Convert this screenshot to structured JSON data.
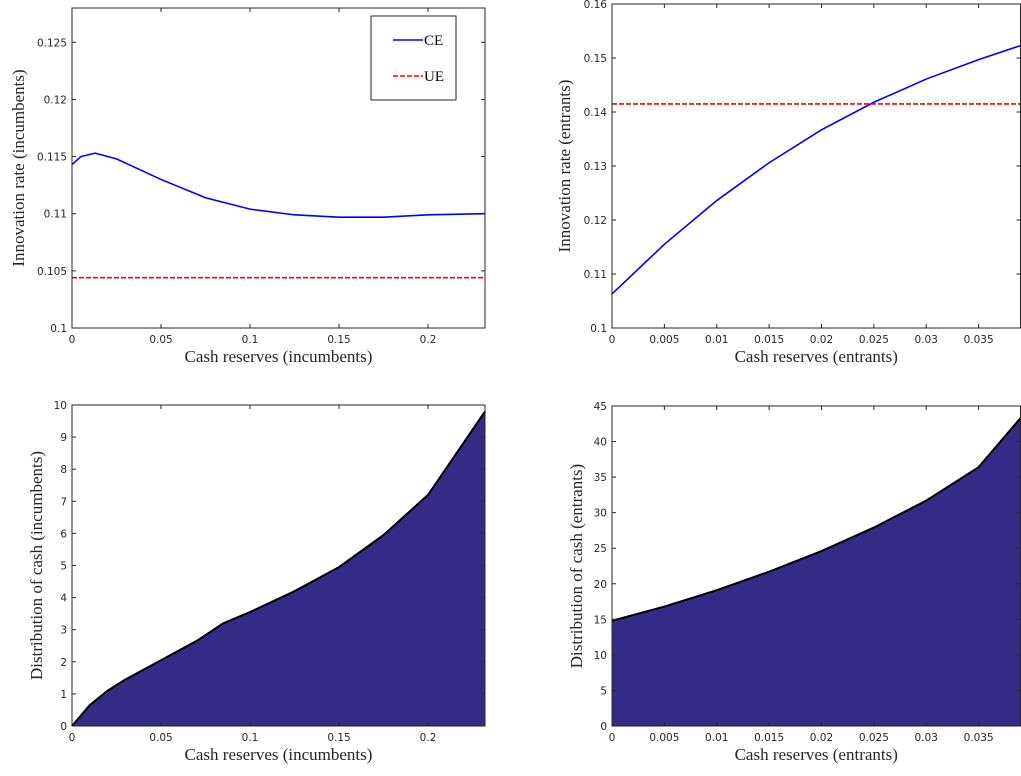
{
  "chart_data": [
    {
      "type": "line",
      "xlabel": "Cash reserves (incumbents)",
      "ylabel": "Innovation rate (incumbents)",
      "x": [
        0,
        0.005,
        0.013,
        0.025,
        0.05,
        0.075,
        0.1,
        0.125,
        0.15,
        0.175,
        0.2,
        0.232
      ],
      "series": [
        {
          "name": "CE",
          "color": "#0000ff",
          "linestyle": "solid",
          "values": [
            0.1143,
            0.115,
            0.1153,
            0.1148,
            0.113,
            0.1114,
            0.1104,
            0.1099,
            0.1097,
            0.1097,
            0.1099,
            0.11
          ]
        },
        {
          "name": "UE",
          "color": "#ff0000",
          "linestyle": "dashed",
          "values": [
            0.1044,
            0.1044,
            0.1044,
            0.1044,
            0.1044,
            0.1044,
            0.1044,
            0.1044,
            0.1044,
            0.1044,
            0.1044,
            0.1044
          ]
        }
      ],
      "xlim": [
        0,
        0.232
      ],
      "ylim": [
        0.1,
        0.128
      ],
      "xticks": [
        0,
        0.05,
        0.1,
        0.15,
        0.2
      ],
      "yticks": [
        0.1,
        0.105,
        0.11,
        0.115,
        0.12,
        0.125
      ],
      "legend": "upper right"
    },
    {
      "type": "line",
      "xlabel": "Cash reserves (entrants)",
      "ylabel": "Innovation rate (entrants)",
      "x": [
        0,
        0.005,
        0.01,
        0.015,
        0.02,
        0.025,
        0.03,
        0.035,
        0.039
      ],
      "series": [
        {
          "name": "CE",
          "color": "#0000ff",
          "linestyle": "solid",
          "values": [
            0.1063,
            0.1155,
            0.1236,
            0.1306,
            0.1367,
            0.1418,
            0.1461,
            0.1497,
            0.1523
          ]
        },
        {
          "name": "UE",
          "color": "#ff0000",
          "linestyle": "dashed",
          "values": [
            0.1415,
            0.1415,
            0.1415,
            0.1415,
            0.1415,
            0.1415,
            0.1415,
            0.1415,
            0.1415
          ]
        }
      ],
      "xlim": [
        0,
        0.039
      ],
      "ylim": [
        0.1,
        0.16
      ],
      "xticks": [
        0,
        0.005,
        0.01,
        0.015,
        0.02,
        0.025,
        0.03,
        0.035
      ],
      "yticks": [
        0.1,
        0.11,
        0.12,
        0.13,
        0.14,
        0.15,
        0.16
      ]
    },
    {
      "type": "area",
      "xlabel": "Cash reserves (incumbents)",
      "ylabel": "Distribution of cash (incumbents)",
      "x": [
        0,
        0.01,
        0.02,
        0.03,
        0.05,
        0.07,
        0.085,
        0.1,
        0.125,
        0.15,
        0.175,
        0.2,
        0.232
      ],
      "values": [
        0,
        0.65,
        1.1,
        1.45,
        2.05,
        2.65,
        3.2,
        3.55,
        4.2,
        4.95,
        5.95,
        7.2,
        9.8
      ],
      "color": "#352a85",
      "xlim": [
        0,
        0.232
      ],
      "ylim": [
        0,
        10
      ],
      "xticks": [
        0,
        0.05,
        0.1,
        0.15,
        0.2
      ],
      "yticks": [
        0,
        1,
        2,
        3,
        4,
        5,
        6,
        7,
        8,
        9,
        10
      ]
    },
    {
      "type": "area",
      "xlabel": "Cash reserves (entrants)",
      "ylabel": "Distribution of cash (entrants)",
      "x": [
        0,
        0.005,
        0.01,
        0.015,
        0.02,
        0.025,
        0.03,
        0.035,
        0.039
      ],
      "values": [
        14.8,
        16.8,
        19.1,
        21.7,
        24.6,
        27.9,
        31.7,
        36.4,
        43.3
      ],
      "color": "#352a85",
      "xlim": [
        0,
        0.039
      ],
      "ylim": [
        0,
        45
      ],
      "xticks": [
        0,
        0.005,
        0.01,
        0.015,
        0.02,
        0.025,
        0.03,
        0.035
      ],
      "yticks": [
        0,
        5,
        10,
        15,
        20,
        25,
        30,
        35,
        40,
        45
      ]
    }
  ]
}
